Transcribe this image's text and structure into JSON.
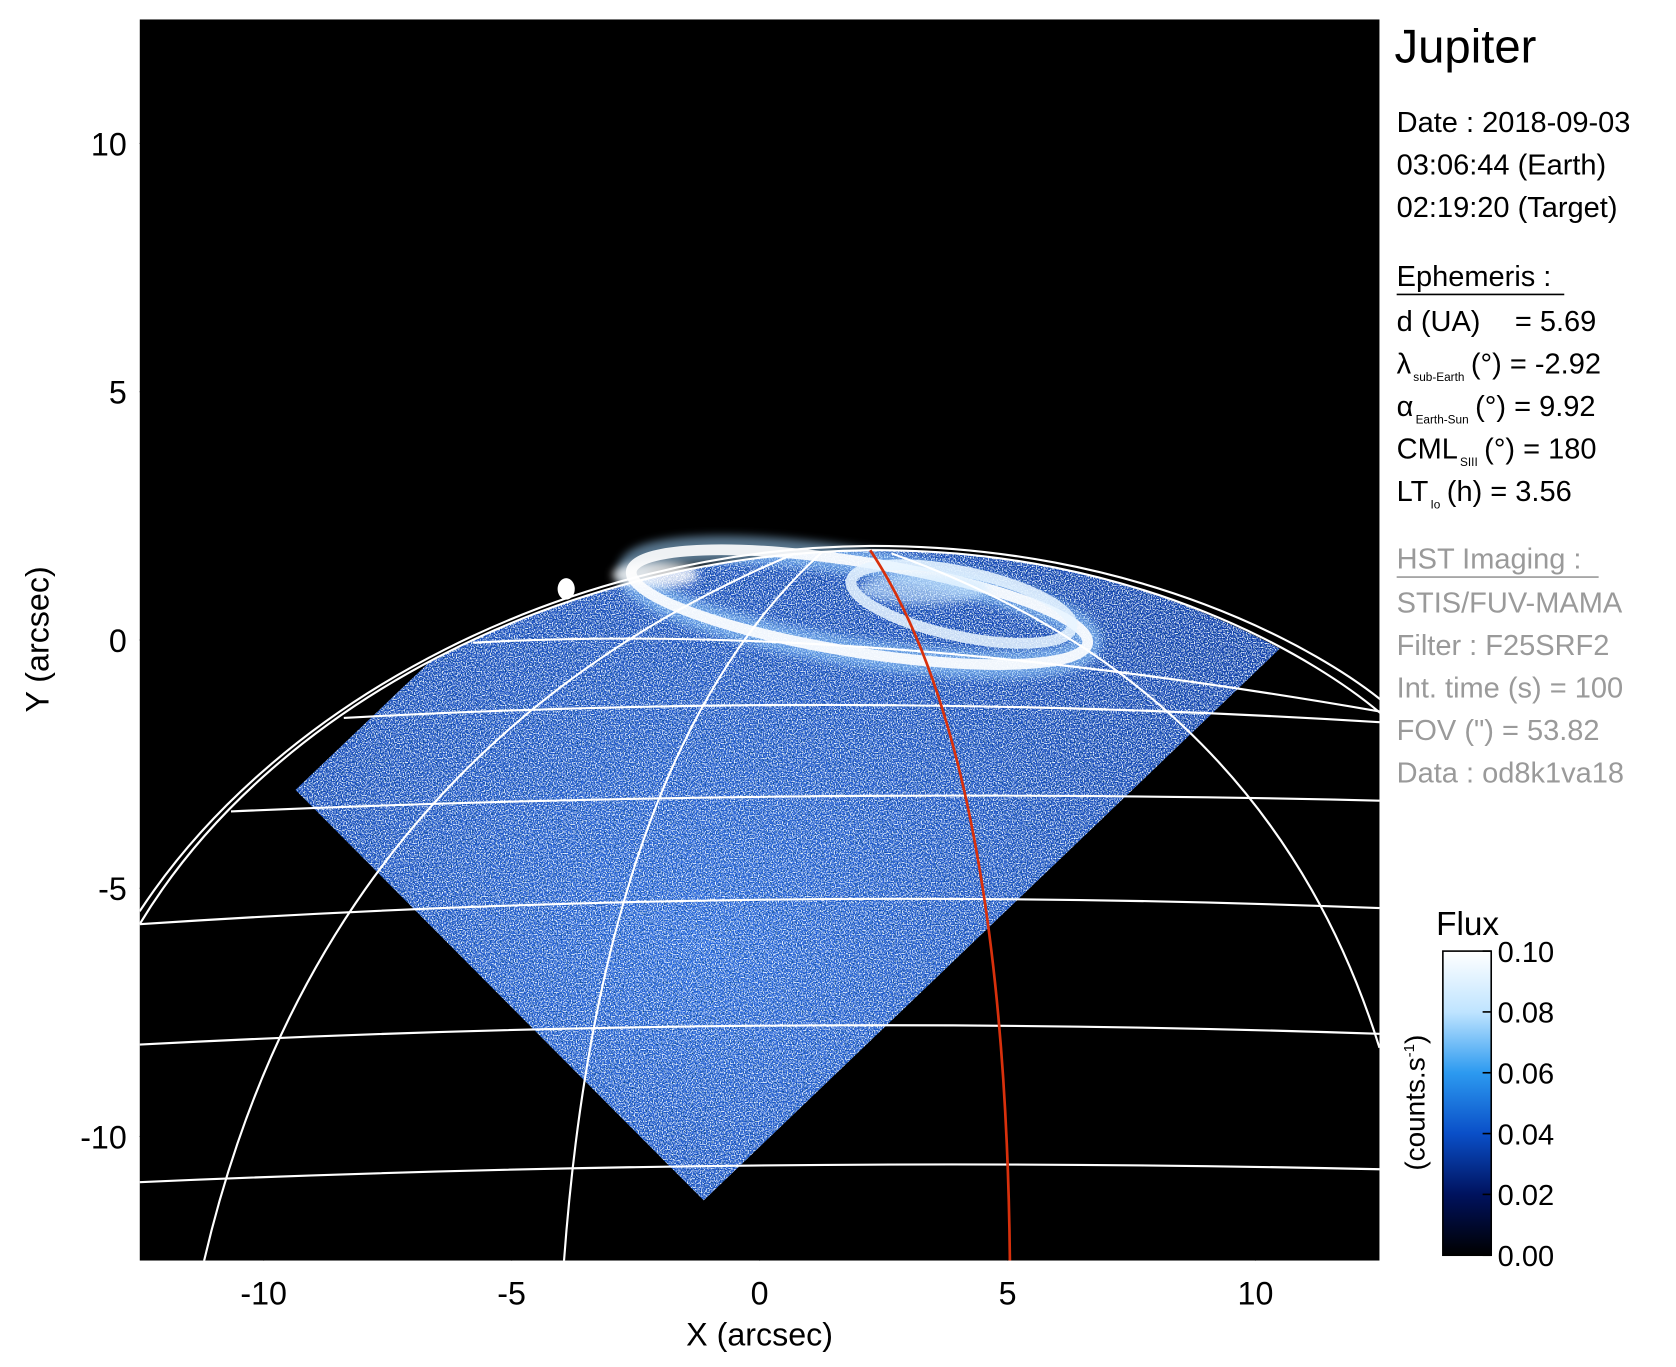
{
  "chart_data": {
    "type": "image",
    "xlabel": "X (arcsec)",
    "ylabel": "Y (arcsec)",
    "xlim": [
      -12.5,
      12.5
    ],
    "ylim": [
      -12.5,
      12.5
    ],
    "xticks": [
      -10,
      -5,
      0,
      5,
      10
    ],
    "yticks": [
      -10,
      -5,
      0,
      5,
      10
    ],
    "colorbar": {
      "title": "Flux",
      "unit": {
        "text": "(counts.s",
        "sup": "-1",
        "close": ")"
      },
      "lim": [
        0,
        0.1
      ],
      "ticks": [
        {
          "value": 0,
          "label": "0.00"
        },
        {
          "value": 0.02,
          "label": "0.02"
        },
        {
          "value": 0.04,
          "label": "0.04"
        },
        {
          "value": 0.06,
          "label": "0.06"
        },
        {
          "value": 0.08,
          "label": "0.08"
        },
        {
          "value": 0.1,
          "label": "0.10"
        }
      ],
      "colors": [
        "#000000",
        "#00125e",
        "#0a4fc8",
        "#2c9af0",
        "#bfe4ff",
        "#ffffff"
      ]
    }
  },
  "info": {
    "title": "Jupiter",
    "date_lines": [
      "Date : 2018-09-03",
      "03:06:44 (Earth)",
      "02:19:20 (Target)"
    ],
    "ephemeris": {
      "heading": "Ephemeris :",
      "lines": [
        {
          "symbol": "d (UA)",
          "rest": "= 5.69"
        },
        {
          "symbol": "λ",
          "sub": "sub-Earth",
          "rest": "(°) = -2.92"
        },
        {
          "symbol": "α",
          "sub": "Earth-Sun",
          "rest": "(°) = 9.92"
        },
        {
          "symbol": "CML",
          "sub": "SIII",
          "rest": "(°) = 180"
        },
        {
          "symbol": "LT",
          "sub": "Io",
          "rest": "(h) = 3.56"
        }
      ]
    },
    "hst": {
      "heading": "HST Imaging :",
      "lines": [
        "STIS/FUV-MAMA",
        "Filter : F25SRF2",
        "Int. time (s) = 100",
        "FOV (\") = 53.82",
        "Data : od8k1va18"
      ]
    }
  }
}
